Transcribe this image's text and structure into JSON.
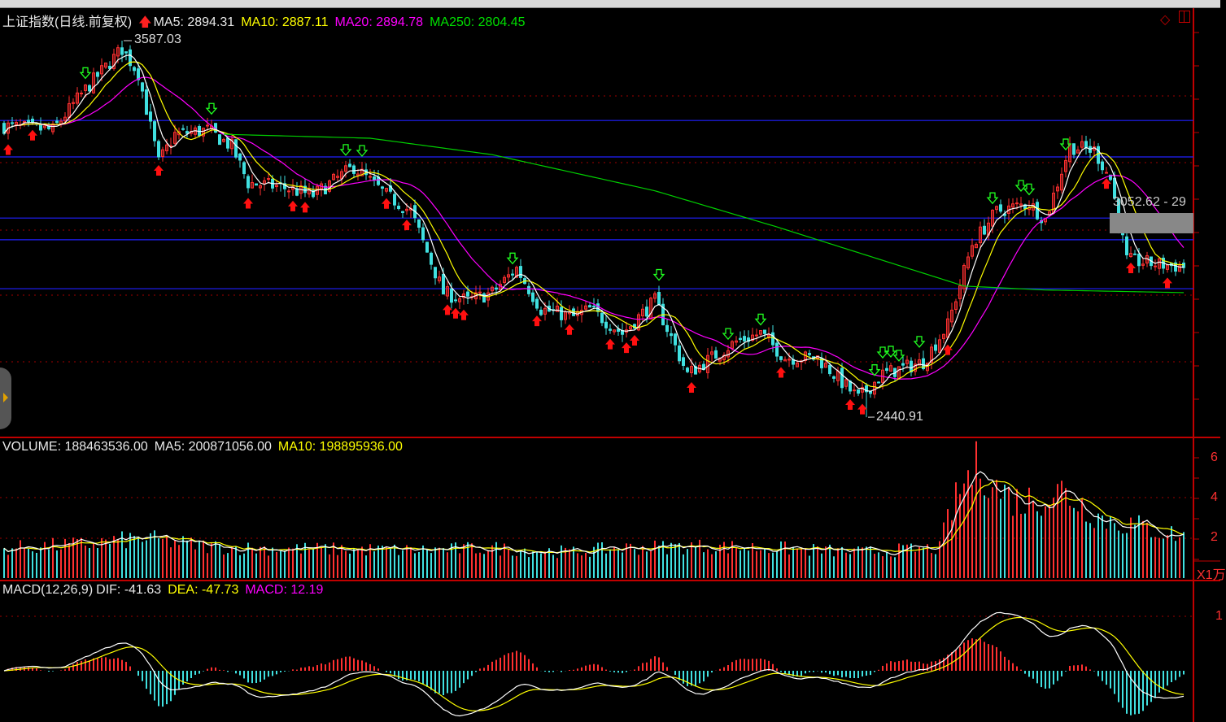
{
  "header": {
    "title": "上证指数(日线.前复权)",
    "ma5": "MA5: 2894.31",
    "ma10": "MA10: 2887.11",
    "ma20": "MA20: 2894.78",
    "ma250": "MA250: 2804.45"
  },
  "volume_header": {
    "volume": "VOLUME: 188463536.00",
    "ma5": "MA5: 200871056.00",
    "ma10": "MA10: 198895936.00",
    "unit": "X1万",
    "ticks": [
      "6",
      "4",
      "2"
    ]
  },
  "macd_header": {
    "name": "MACD(12,26,9)",
    "dif": "DIF: -41.63",
    "dea": "DEA: -47.73",
    "macd": "MACD: 12.19",
    "ticks": [
      "1"
    ]
  },
  "annotations": {
    "high": "3587.03",
    "low": "2440.91",
    "range": "3052.62 - 29"
  },
  "colors": {
    "up": "#ff3030",
    "down": "#40e0e0",
    "ma5": "#ffffff",
    "ma10": "#ffff00",
    "ma20": "#ff00ff",
    "ma250": "#00d000",
    "hline": "#2020ff",
    "axis": "#c00000"
  },
  "chart_data": {
    "type": "candlestick",
    "title": "上证指数(日线.前复权)",
    "price_keypoints": {
      "bar": [
        0,
        12,
        20,
        29,
        33,
        38,
        42,
        50,
        56,
        60,
        68,
        76,
        86,
        94,
        100,
        108,
        114,
        120,
        126,
        132,
        140,
        144,
        152,
        160,
        168,
        174,
        180,
        186,
        192,
        200,
        210,
        216,
        226,
        232,
        238,
        244,
        252,
        256,
        262,
        268,
        272,
        276,
        284,
        290
      ],
      "close": [
        3327,
        3315,
        3439,
        3562,
        3488,
        3216,
        3302,
        3315,
        3265,
        3154,
        3142,
        3117,
        3203,
        3117,
        3067,
        2820,
        2795,
        2820,
        2894,
        2770,
        2746,
        2770,
        2696,
        2795,
        2572,
        2622,
        2671,
        2696,
        2622,
        2622,
        2498,
        2572,
        2609,
        2721,
        2968,
        3067,
        3092,
        3042,
        3265,
        3253,
        3166,
        2919,
        2906,
        2899
      ]
    },
    "ma250_keypoints": {
      "bar": [
        54,
        90,
        120,
        160,
        190,
        236,
        256,
        290
      ],
      "value": [
        3302,
        3290,
        3240,
        3130,
        3020,
        2840,
        2828,
        2820
      ]
    },
    "horizontal_lines": [
      3344,
      3233,
      3047,
      2981,
      2832
    ],
    "high": 3587.03,
    "low": 2440.91,
    "volume_keypoints": {
      "bar": [
        0,
        20,
        34,
        50,
        60,
        100,
        120,
        140,
        150,
        170,
        190,
        210,
        230,
        232,
        236,
        240,
        244,
        250,
        260,
        270,
        290
      ],
      "value": [
        1.5,
        1.7,
        2.0,
        1.6,
        1.5,
        1.4,
        1.5,
        1.3,
        1.5,
        1.6,
        1.5,
        1.3,
        1.5,
        3.0,
        4.8,
        5.8,
        4.5,
        3.8,
        4.4,
        3.0,
        2.1
      ]
    },
    "buy_signals": [
      1,
      7,
      38,
      60,
      71,
      74,
      94,
      99,
      109,
      111,
      113,
      131,
      139,
      149,
      153,
      155,
      169,
      191,
      208,
      211,
      232,
      271,
      277,
      286
    ],
    "sell_signals": [
      20,
      51,
      84,
      88,
      125,
      161,
      178,
      186,
      214,
      216,
      218,
      220,
      225,
      243,
      250,
      252,
      261
    ],
    "macd_params": [
      12,
      26,
      9
    ]
  }
}
